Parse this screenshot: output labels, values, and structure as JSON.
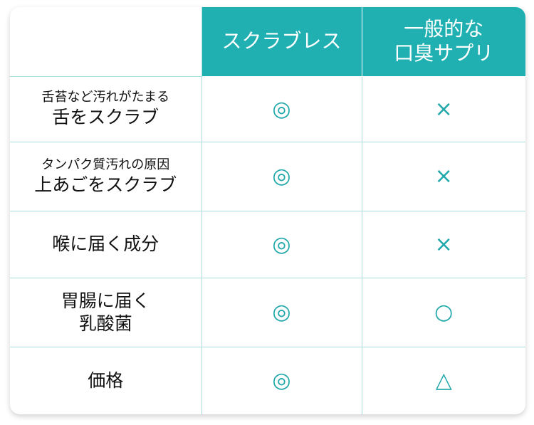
{
  "header": {
    "col1": "",
    "col2": "スクラブレス",
    "col3_line1": "一般的な",
    "col3_line2": "口臭サプリ"
  },
  "rows": [
    {
      "sub": "舌苔など汚れがたまる",
      "label": "舌をスクラブ",
      "a": "◎",
      "b": "×"
    },
    {
      "sub": "タンパク質汚れの原因",
      "label": "上あごをスクラブ",
      "a": "◎",
      "b": "×"
    },
    {
      "sub": "",
      "label": "喉に届く成分",
      "a": "◎",
      "b": "×"
    },
    {
      "sub": "胃腸に届く",
      "label": "乳酸菌",
      "a": "◎",
      "b": "○"
    },
    {
      "sub": "",
      "label": "価格",
      "a": "◎",
      "b": "△"
    }
  ],
  "colors": {
    "accent": "#21b0b2",
    "grid": "#a8dede"
  }
}
